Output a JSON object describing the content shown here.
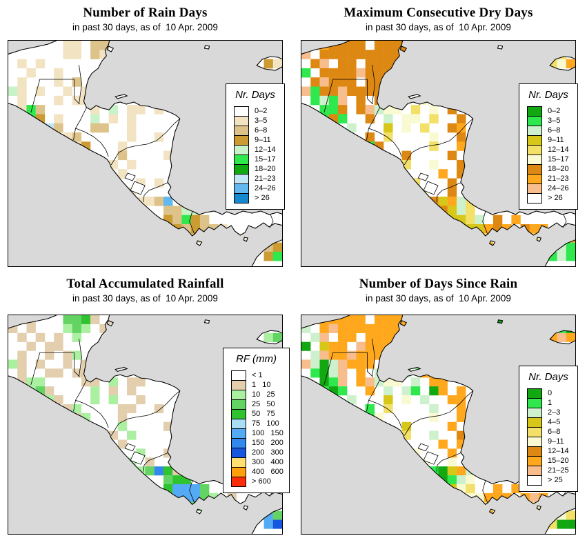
{
  "page": {
    "background": "#ffffff",
    "ocean_color": "#d9d9d9",
    "land_color": "#ffffff"
  },
  "chart_data": [
    {
      "type": "gridded_map",
      "title": "Number of Rain Days",
      "subtitle": "in past 30 days, as of  10 Apr. 2009",
      "legend_title": "Nr. Days",
      "classes": [
        {
          "label": "0–2",
          "color": "#ffffff"
        },
        {
          "label": "3–5",
          "color": "#f2e4c2"
        },
        {
          "label": "6–8",
          "color": "#ddc289"
        },
        {
          "label": "9–11",
          "color": "#cc9c33"
        },
        {
          "label": "12–14",
          "color": "#c8f2c8"
        },
        {
          "label": "15–17",
          "color": "#2ee84e"
        },
        {
          "label": "18–20",
          "color": "#12a812"
        },
        {
          "label": "21–23",
          "color": "#c2e6f8"
        },
        {
          "label": "24–26",
          "color": "#63b8ef"
        },
        {
          "label": "> 26",
          "color": "#1489cf"
        }
      ],
      "grid_cols": 30,
      "grid_rows": 24,
      "grid": [
        "......bb.cc...................",
        "......bb.cb...................",
        ".b.b........................db",
        "..b..b......................b.",
        ".b...b.c......................",
        "eb.b..b.b.....................",
        ".b...b.bb.b...................",
        ".bfc.....b.e.bb.b.............",
        "..fd.b...e.b.b................",
        "..ffhc...cc..b................",
        "......bc.....b..b.............",
        ".......bd...b.................",
        "........d...c....b............",
        "...........b.b................",
        "............b.................",
        "..............b.b.............",
        ".............b................",
        "..............bbci............",
        ".................ccee.........",
        ".................dcfdc........",
        ".................bdcdccb......",
        "..................cdcb.c.b....",
        ".......................c....cd",
        "............................df"
      ]
    },
    {
      "type": "gridded_map",
      "title": "Maximum Consecutive Dry Days",
      "subtitle": "in past 30 days, as of  10 Apr. 2009",
      "legend_title": "Nr. Days",
      "classes": [
        {
          "label": "0–2",
          "color": "#12a812"
        },
        {
          "label": "3–5",
          "color": "#2ee84e"
        },
        {
          "label": "6–8",
          "color": "#cdf0cd"
        },
        {
          "label": "9–11",
          "color": "#d6c719"
        },
        {
          "label": "12–14",
          "color": "#f2e068"
        },
        {
          "label": "15–17",
          "color": "#fafad2"
        },
        {
          "label": "18–20",
          "color": "#dd8812"
        },
        {
          "label": "21–23",
          "color": "#ffa81e"
        },
        {
          "label": "24–26",
          "color": "#f7bd8d"
        },
        {
          "label": "> 26",
          "color": "#ffffff"
        }
      ],
      "grid_cols": 30,
      "grid_rows": 24,
      "grid": [
        "iihgggg.gggg..................",
        "i.gggggggggg...............he.",
        ".gi.gg.ggggg...............efh",
        "b.ggggiggggh..................",
        ".giggg.ggggg..................",
        "ibggigggg.gh..................",
        ".bcbi.g.gc.f.f................",
        "..bbg.gicff.e.f.g.............",
        ".cbgb..g.c.ff.e..g............",
        "..bb.c...d.f.e..gh............",
        "....g..g.e....f..g............",
        ".....g.bg.....e..h............",
        ".......gh..g....g.............",
        "........g..e..f..g............",
        "..........g....h.g............",
        "............e...g.............",
        ".............f..g.............",
        ".............fgdhce...........",
        "..............dgdce...........",
        "..............hdddec.g.h......",
        "...............dedddhgh.ghh...",
        "................hdh.e.d..e.hbh",
        "....................h..g..d.cb",
        "...........................bcb"
      ]
    },
    {
      "type": "gridded_map",
      "title": "Total Accumulated Rainfall",
      "subtitle": "in past 30 days, as of  10 Apr. 2009",
      "legend_title": "RF (mm)",
      "classes": [
        {
          "label": "< 1",
          "color": "#ffffff"
        },
        {
          "label": "1   10",
          "color": "#e3cfae"
        },
        {
          "label": "10   25",
          "color": "#aaf0a0"
        },
        {
          "label": "25   50",
          "color": "#63d463"
        },
        {
          "label": "50   75",
          "color": "#2fc42f"
        },
        {
          "label": "75   100",
          "color": "#aadef5"
        },
        {
          "label": "100   150",
          "color": "#55aaf5"
        },
        {
          "label": "150   200",
          "color": "#3388ee"
        },
        {
          "label": "200   300",
          "color": "#1757e0"
        },
        {
          "label": "300   400",
          "color": "#fedf70"
        },
        {
          "label": "400   600",
          "color": "#ffa00a"
        },
        {
          "label": "> 600",
          "color": "#fe2c09"
        }
      ],
      "grid_cols": 30,
      "grid_rows": 24,
      "grid": [
        ".bb...ddeb.b..................",
        "b.b...cdc.b...................",
        ".b.b.b.c....................cd",
        "..b.bb.....................c..",
        ".b..b.bc......................",
        "cb.b..b.b.....................",
        ".b..bb.bb.b...................",
        ".bcc....bb.c.bb...............",
        "..cdb....c.b.b................",
        "..cdcb...c.c..b...............",
        "....b.bc....bb..b.............",
        ".......bc...b.................",
        "........c...c....b............",
        "...........b.c................",
        "............b.................",
        "..............c..b............",
        ".............c.b..............",
        "..............cdheb...........",
        ".................dee..........",
        ".................egggd........",
        "................bdgggdc.b.....",
        "..................deddcb...cd.",
        ".......................c...dgd",
        "............................gi"
      ]
    },
    {
      "type": "gridded_map",
      "title": "Number of Days Since Rain",
      "subtitle": "in past 30 days, as of  10 Apr. 2009",
      "legend_title": "Nr. Days",
      "classes": [
        {
          "label": "0",
          "color": "#12a812"
        },
        {
          "label": "1",
          "color": "#2ee84e"
        },
        {
          "label": "2–3",
          "color": "#cdf0cd"
        },
        {
          "label": "4–5",
          "color": "#d6c719"
        },
        {
          "label": "6–8",
          "color": "#f2e068"
        },
        {
          "label": "9–11",
          "color": "#fafad2"
        },
        {
          "label": "12–14",
          "color": "#dd8812"
        },
        {
          "label": "15–20",
          "color": "#ffa81e"
        },
        {
          "label": "21–25",
          "color": "#f7bd8d"
        },
        {
          "label": "> 25",
          "color": "#ffffff"
        }
      ],
      "grid_cols": 30,
      "grid_rows": 24,
      "grid": [
        "cihhhhh.hhhh.........a........",
        "c.hihhhhhhhh...............eba",
        ".ci.hh.hhhhi...............hih",
        "a.dhh.ihhhhi..................",
        ".cihhihhhhhh..................",
        "icacihhh.hhib.................",
        ".baci.h.cc.c.hh...............",
        "..abi.hicff.c.hh..............",
        ".cbab..h.c.cb.ah.h............",
        "..bc.c...d.f.c..hh............",
        "....h..b.e....c..h............",
        ".....i.bf.....f..h............",
        ".......hf..d....h.............",
        "........f..e..c..g............",
        "..........g....h.h............",
        "............f...h.............",
        ".............f..f.............",
        ".............fbadhcf..........",
        "..............babcf...........",
        "..............fbdfe..h.h......",
        "...............efeffhhh.hih...",
        "................hfh.e.g..e.hf.",
        "....................h..h..e.fe",
        "...........................eaa"
      ]
    }
  ]
}
